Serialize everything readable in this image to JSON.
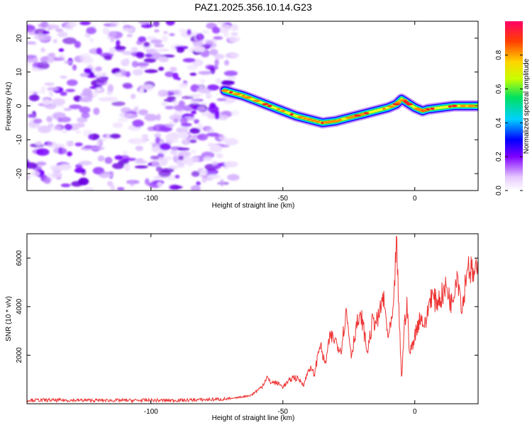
{
  "title": "PAZ1.2025.356.10.14.G23",
  "chart_data": [
    {
      "type": "heatmap",
      "title": "PAZ1.2025.356.10.14.G23",
      "xlabel": "Height of straight line (km)",
      "ylabel": "Frequency (Hz)",
      "xlim": [
        -147,
        24
      ],
      "ylim": [
        -25,
        25
      ],
      "xticks": [
        -100,
        -50,
        0
      ],
      "xtick_labels": [
        "-100",
        "-50",
        "0"
      ],
      "yticks": [
        -20,
        -10,
        0,
        10,
        20
      ],
      "ytick_labels": [
        "-20",
        "-10",
        "0",
        "10",
        "20"
      ],
      "noise_region_km": [
        -147,
        -70
      ],
      "ridge": {
        "x": [
          -72,
          -65,
          -60,
          -55,
          -50,
          -45,
          -40,
          -35,
          -30,
          -25,
          -20,
          -15,
          -10,
          -7,
          -5,
          -3,
          0,
          3,
          5,
          10,
          15,
          20,
          24
        ],
        "y": [
          4.5,
          3,
          1.5,
          0,
          -1.5,
          -3,
          -4,
          -5,
          -4.5,
          -3.5,
          -2.5,
          -1.5,
          -0.5,
          0.5,
          2,
          1,
          -0.5,
          -1.5,
          -1,
          -0.5,
          0,
          0,
          0
        ]
      },
      "colorbar": {
        "label": "Normalized spectral amplitude",
        "range": [
          0,
          1
        ],
        "ticks": [
          0,
          0.2,
          0.4,
          0.6,
          0.8
        ],
        "tick_labels": [
          "0.0",
          "0.2",
          "0.4",
          "0.6",
          "0.8"
        ]
      }
    },
    {
      "type": "line",
      "xlabel": "Height of straight line (km)",
      "ylabel": "SNR (10 * v/v)",
      "xlim": [
        -147,
        24
      ],
      "ylim": [
        0,
        7000
      ],
      "xticks": [
        -100,
        -50,
        0
      ],
      "xtick_labels": [
        "-100",
        "-50",
        "0"
      ],
      "yticks": [
        2000,
        4000,
        6000
      ],
      "ytick_labels": [
        "2000",
        "4000",
        "6000"
      ],
      "series": [
        {
          "name": "SNR",
          "color": "#ee3333",
          "x": [
            -147,
            -120,
            -90,
            -75,
            -70,
            -62,
            -58,
            -56,
            -55,
            -52,
            -50,
            -46,
            -44,
            -42,
            -40,
            -38,
            -36,
            -34,
            -32,
            -30,
            -28,
            -26,
            -24,
            -22,
            -20,
            -18,
            -16,
            -14,
            -12,
            -10,
            -8,
            -7,
            -6,
            -5,
            -4,
            -3,
            -2,
            0,
            2,
            4,
            6,
            8,
            10,
            12,
            14,
            16,
            18,
            20,
            22,
            24
          ],
          "y": [
            150,
            140,
            140,
            180,
            200,
            350,
            700,
            1100,
            900,
            850,
            700,
            1100,
            1000,
            800,
            1500,
            1200,
            2500,
            1600,
            2800,
            2600,
            2200,
            3800,
            2000,
            3300,
            3500,
            2100,
            3400,
            3400,
            4400,
            2700,
            3800,
            6900,
            3700,
            1000,
            3100,
            4200,
            2000,
            2800,
            3600,
            3200,
            4500,
            4200,
            4400,
            4800,
            4100,
            5500,
            3900,
            5800,
            5300,
            5400
          ]
        }
      ]
    }
  ]
}
